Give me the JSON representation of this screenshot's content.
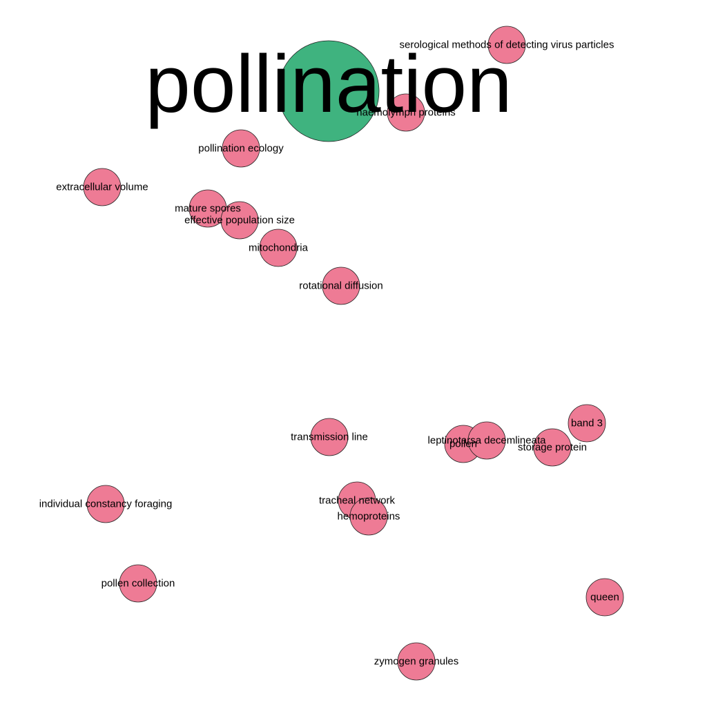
{
  "colors": {
    "hub_fill": "#3fb37f",
    "node_fill": "#ee7b95",
    "node_stroke": "#222222",
    "background": "#ffffff"
  },
  "graph": {
    "hub": {
      "id": "pollination",
      "label": "pollination"
    },
    "nodes": [
      {
        "id": "serological",
        "label": "serological methods of detecting virus particles"
      },
      {
        "id": "haemolymph",
        "label": "haemolymph proteins"
      },
      {
        "id": "pollination-ecology",
        "label": "pollination ecology"
      },
      {
        "id": "extracellular-volume",
        "label": "extracellular volume"
      },
      {
        "id": "mature-spores",
        "label": "mature spores"
      },
      {
        "id": "effective-population-size",
        "label": "effective population size"
      },
      {
        "id": "mitochondria",
        "label": "mitochondria"
      },
      {
        "id": "rotational-diffusion",
        "label": "rotational diffusion"
      },
      {
        "id": "transmission-line",
        "label": "transmission line"
      },
      {
        "id": "pollen",
        "label": "pollen"
      },
      {
        "id": "leptinotarsa",
        "label": "leptinotarsa decemlineata"
      },
      {
        "id": "band-3",
        "label": "band 3"
      },
      {
        "id": "storage-protein",
        "label": "storage protein"
      },
      {
        "id": "individual-constancy",
        "label": "individual constancy foraging"
      },
      {
        "id": "tracheal-network",
        "label": "tracheal network"
      },
      {
        "id": "hemoproteins",
        "label": "hemoproteins"
      },
      {
        "id": "pollen-collection",
        "label": "pollen collection"
      },
      {
        "id": "queen",
        "label": "queen"
      },
      {
        "id": "zymogen-granules",
        "label": "zymogen granules"
      }
    ]
  }
}
